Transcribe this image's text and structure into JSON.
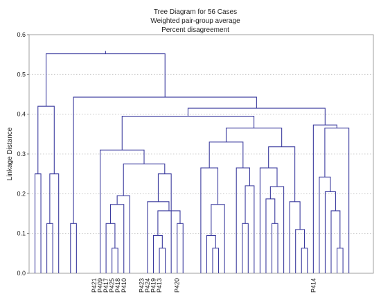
{
  "chart_data": {
    "type": "dendrogram",
    "title": "Tree Diagram for 56 Cases",
    "subtitle": "Weighted pair-group average",
    "subtitle2": "Percent disagreement",
    "ylabel": "Linkage Distance",
    "xlabel": "",
    "ylim": [
      0,
      0.6
    ],
    "yticks": [
      0.0,
      0.1,
      0.2,
      0.3,
      0.4,
      0.5,
      0.6
    ],
    "grid": "horizontal dotted",
    "line_color": "#3b3b9e",
    "leaf_count": 56,
    "leaf_labels": [
      {
        "leaf": 11,
        "label": "P421"
      },
      {
        "leaf": 12,
        "label": "P409"
      },
      {
        "leaf": 13,
        "label": "P417"
      },
      {
        "leaf": 14,
        "label": "P425"
      },
      {
        "leaf": 15,
        "label": "P418"
      },
      {
        "leaf": 16,
        "label": "P410"
      },
      {
        "leaf": 19,
        "label": "P423"
      },
      {
        "leaf": 20,
        "label": "P424"
      },
      {
        "leaf": 21,
        "label": "P419"
      },
      {
        "leaf": 22,
        "label": "P413"
      },
      {
        "leaf": 25,
        "label": "P420"
      },
      {
        "leaf": 48,
        "label": "P414"
      }
    ],
    "merges": [
      {
        "id": "A",
        "left": 3,
        "right": 4,
        "height": 0.125
      },
      {
        "id": "B",
        "left": 1,
        "right": 2,
        "height": 0.25
      },
      {
        "id": "C",
        "left": "A",
        "right": 5,
        "height": 0.25
      },
      {
        "id": "D",
        "left": "B",
        "right": "C",
        "height": 0.42
      },
      {
        "id": "E",
        "left": 7,
        "right": 8,
        "height": 0.125
      },
      {
        "id": "F",
        "left": 14,
        "right": 15,
        "height": 0.063
      },
      {
        "id": "G",
        "left": 13,
        "right": "F",
        "height": 0.125
      },
      {
        "id": "H",
        "left": "G",
        "right": 16,
        "height": 0.173
      },
      {
        "id": "I",
        "left": 17,
        "right": "H",
        "height": 0.195
      },
      {
        "id": "J",
        "left": 22,
        "right": 23,
        "height": 0.063
      },
      {
        "id": "K",
        "left": 21,
        "right": "J",
        "height": 0.095
      },
      {
        "id": "L",
        "left": 25,
        "right": 26,
        "height": 0.125
      },
      {
        "id": "M",
        "left": "K",
        "right": "L",
        "height": 0.157
      },
      {
        "id": "N",
        "left": 20,
        "right": "M",
        "height": 0.18
      },
      {
        "id": "O",
        "left": "N",
        "right": 24,
        "height": 0.25
      },
      {
        "id": "P",
        "left": "I",
        "right": "O",
        "height": 0.275
      },
      {
        "id": "Q",
        "left": 12,
        "right": "P",
        "height": 0.31
      },
      {
        "id": "R",
        "left": 31,
        "right": 32,
        "height": 0.063
      },
      {
        "id": "S",
        "left": 30,
        "right": "R",
        "height": 0.095
      },
      {
        "id": "T",
        "left": "S",
        "right": 33,
        "height": 0.173
      },
      {
        "id": "U",
        "left": 29,
        "right": "T",
        "height": 0.265
      },
      {
        "id": "V",
        "left": 36,
        "right": 37,
        "height": 0.125
      },
      {
        "id": "W",
        "left": "V",
        "right": 38,
        "height": 0.22
      },
      {
        "id": "X",
        "left": 35,
        "right": "W",
        "height": 0.265
      },
      {
        "id": "Y",
        "left": "U",
        "right": "X",
        "height": 0.33
      },
      {
        "id": "Z",
        "left": 41,
        "right": 42,
        "height": 0.125
      },
      {
        "id": "AA",
        "left": 40,
        "right": "Z",
        "height": 0.187
      },
      {
        "id": "AB",
        "left": "AA",
        "right": 43,
        "height": 0.218
      },
      {
        "id": "AC",
        "left": 39,
        "right": "AB",
        "height": 0.265
      },
      {
        "id": "AD",
        "left": 46,
        "right": 47,
        "height": 0.063
      },
      {
        "id": "AE",
        "left": 45,
        "right": "AD",
        "height": 0.11
      },
      {
        "id": "AF",
        "left": 44,
        "right": "AE",
        "height": 0.18
      },
      {
        "id": "AG",
        "left": "AC",
        "right": "AF",
        "height": 0.318
      },
      {
        "id": "AH",
        "left": "Y",
        "right": "AG",
        "height": 0.365
      },
      {
        "id": "AI",
        "left": "Q",
        "right": "AH",
        "height": 0.395
      },
      {
        "id": "AJ",
        "left": 52,
        "right": 53,
        "height": 0.063
      },
      {
        "id": "AK",
        "left": 51,
        "right": "AJ",
        "height": 0.157
      },
      {
        "id": "AL",
        "left": 50,
        "right": "AK",
        "height": 0.205
      },
      {
        "id": "AM",
        "left": 49,
        "right": "AL",
        "height": 0.242
      },
      {
        "id": "AN",
        "left": "AM",
        "right": 54,
        "height": 0.365
      },
      {
        "id": "AO",
        "left": "AN",
        "right": 48,
        "height": 0.373
      },
      {
        "id": "AP",
        "left": "AI",
        "right": "AO",
        "height": 0.415
      },
      {
        "id": "AQ",
        "left": "E",
        "right": "AP",
        "height": 0.443
      },
      {
        "id": "AR",
        "left": "D",
        "right": "AQ",
        "height": 0.552
      }
    ]
  }
}
